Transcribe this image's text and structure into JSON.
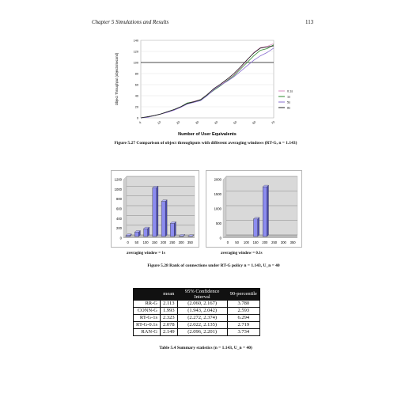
{
  "header": {
    "chapter": "Chapter 5 Simulations and Results",
    "page_number": "113"
  },
  "chart_data": [
    {
      "type": "line",
      "ylabel": "Object Throughput (objects/second)",
      "xlabel": "Number of User Equivalents",
      "x": [
        1,
        2,
        3,
        4,
        5,
        6,
        7,
        8,
        9,
        10,
        11,
        12,
        13,
        14,
        15,
        16,
        17,
        18,
        19,
        20,
        21
      ],
      "x_tick_labels": [
        "0",
        "10",
        "20",
        "30",
        "40",
        "50",
        "60",
        "70"
      ],
      "y_tick_labels": [
        "0",
        "20",
        "40",
        "60",
        "80",
        "100",
        "120",
        "140"
      ],
      "ylim": [
        0,
        140
      ],
      "series": [
        {
          "name": "0.1s",
          "color": "#d98cc0",
          "values": [
            0,
            2,
            4,
            7,
            10,
            14,
            19,
            26,
            30,
            33,
            42,
            52,
            60,
            68,
            78,
            90,
            104,
            118,
            127,
            129,
            134
          ]
        },
        {
          "name": "1s",
          "color": "#2e8b2e",
          "values": [
            0,
            2,
            4,
            7,
            11,
            15,
            20,
            27,
            29,
            32,
            41,
            50,
            58,
            67,
            76,
            88,
            100,
            112,
            122,
            125,
            132
          ]
        },
        {
          "name": "5s",
          "color": "#8a6fd1",
          "values": [
            0,
            1,
            4,
            7,
            10,
            14,
            19,
            25,
            28,
            31,
            40,
            51,
            59,
            66,
            74,
            84,
            94,
            104,
            112,
            118,
            126
          ]
        },
        {
          "name": "8s",
          "color": "#222222",
          "values": [
            0,
            2,
            4,
            7,
            11,
            15,
            20,
            26,
            29,
            33,
            42,
            53,
            61,
            70,
            80,
            92,
            105,
            117,
            126,
            128,
            130
          ]
        }
      ],
      "legend": [
        "0.1s",
        "1s",
        "5s",
        "8s"
      ]
    },
    {
      "type": "bar",
      "categories": [
        "0",
        "50",
        "100",
        "150",
        "200",
        "250",
        "300",
        "350"
      ],
      "values": [
        20,
        90,
        160,
        1000,
        720,
        270,
        10,
        5
      ],
      "ylim": [
        0,
        1200
      ],
      "y_tick_labels": [
        "0",
        "200",
        "400",
        "600",
        "800",
        "1000",
        "1200"
      ],
      "xlabel": "averaging window = 1s"
    },
    {
      "type": "bar",
      "categories": [
        "0",
        "50",
        "100",
        "150",
        "200",
        "250",
        "300",
        "350"
      ],
      "values": [
        0,
        0,
        0,
        600,
        1700,
        0,
        0,
        0
      ],
      "ylim": [
        0,
        2000
      ],
      "y_tick_labels": [
        "0",
        "500",
        "1000",
        "1500",
        "2000"
      ],
      "xlabel": "averaging window = 0.1s"
    }
  ],
  "captions": {
    "figure_5_27": "Figure 5.27 Comparison of object throughputs with different averaging windows (RT-G, n = 1.143)",
    "figure_5_28": "Figure 5.28 Rank of connections under RT-G policy n = 1.143, U_n = 40",
    "table_5_4": "Table 5.4 Summary statistics (n = 1.143, U_n = 40)"
  },
  "table": {
    "headers": [
      "",
      "mean",
      "95% Confidence Interval",
      "90-percentile"
    ],
    "rows": [
      [
        "RR-G",
        "2.113",
        "(2.060, 2.167)",
        "3.780"
      ],
      [
        "CONN-G",
        "1.993",
        "(1.943, 2.042)",
        "2.593"
      ],
      [
        "RT-G-1s",
        "2.323",
        "(2.272, 2.374)",
        "6.294"
      ],
      [
        "RT-G-0.1s",
        "2.078",
        "(2.022, 2.135)",
        "2.719"
      ],
      [
        "RAN-G",
        "2.149",
        "(2.096, 2.201)",
        "3.734"
      ]
    ]
  }
}
